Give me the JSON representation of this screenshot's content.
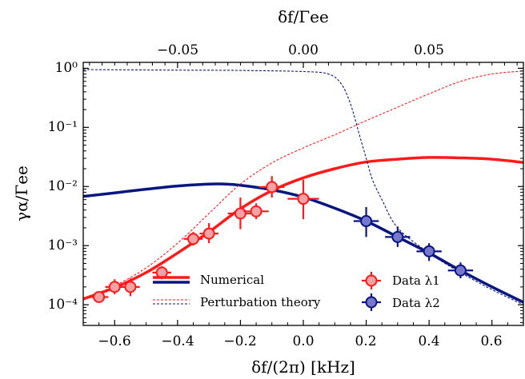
{
  "chart_data": {
    "type": "line",
    "xlabel": "δf/(2π) [kHz]",
    "x2label": "δf/Γee",
    "ylabel": "γα/Γee",
    "xlim": [
      -0.7,
      0.7
    ],
    "x2lim": [
      -0.0875,
      0.0875
    ],
    "ylim_log10": [
      -4.35,
      0.1
    ],
    "yscale": "log",
    "x_ticks": [
      "−0.6",
      "−0.4",
      "−0.2",
      "0.0",
      "0.2",
      "0.4",
      "0.6"
    ],
    "x2_ticks": [
      "−0.05",
      "0.00",
      "0.05"
    ],
    "y_ticks": [
      "10⁰",
      "10⁻¹",
      "10⁻²",
      "10⁻³",
      "10⁻⁴"
    ],
    "legend_position": "bottom",
    "colors": {
      "red": "#ff1a1a",
      "blue": "#0a1680",
      "marker_red": "#f4a3a3",
      "marker_blue": "#7777cc"
    },
    "legend": {
      "numerical": "Numerical",
      "perturbation": "Perturbation theory",
      "data1": "Data λ1",
      "data2": "Data λ2"
    },
    "series": [
      {
        "name": "Numerical",
        "component": "λ1",
        "x": [
          -0.7,
          -0.6,
          -0.5,
          -0.4,
          -0.3,
          -0.2,
          -0.1,
          0.0,
          0.1,
          0.2,
          0.3,
          0.4,
          0.5,
          0.6,
          0.7
        ],
        "y": [
          0.000125,
          0.000195,
          0.00035,
          0.00075,
          0.0017,
          0.0042,
          0.0085,
          0.014,
          0.02,
          0.026,
          0.029,
          0.031,
          0.0305,
          0.029,
          0.0255
        ]
      },
      {
        "name": "Numerical",
        "component": "λ2",
        "x": [
          -0.7,
          -0.6,
          -0.5,
          -0.4,
          -0.3,
          -0.25,
          -0.2,
          -0.1,
          0.0,
          0.1,
          0.2,
          0.3,
          0.4,
          0.5,
          0.6,
          0.7
        ],
        "y": [
          0.0068,
          0.0078,
          0.009,
          0.0102,
          0.011,
          0.011,
          0.0105,
          0.0088,
          0.0066,
          0.0043,
          0.0026,
          0.0014,
          0.00075,
          0.00038,
          0.0002,
          0.00011
        ]
      },
      {
        "name": "Perturbation theory",
        "component": "λ1",
        "x": [
          -0.7,
          -0.6,
          -0.5,
          -0.4,
          -0.3,
          -0.2,
          -0.1,
          0.0,
          0.1,
          0.2,
          0.3,
          0.4,
          0.5,
          0.6,
          0.7
        ],
        "y": [
          0.000125,
          0.00021,
          0.00042,
          0.0011,
          0.0035,
          0.011,
          0.025,
          0.045,
          0.075,
          0.13,
          0.22,
          0.37,
          0.6,
          0.8,
          0.9
        ]
      },
      {
        "name": "Perturbation theory",
        "component": "λ2",
        "x": [
          -0.7,
          -0.4,
          -0.2,
          0.0,
          0.08,
          0.12,
          0.15,
          0.18,
          0.2,
          0.22,
          0.25,
          0.3,
          0.4,
          0.5,
          0.6,
          0.7
        ],
        "y": [
          0.95,
          0.93,
          0.92,
          0.88,
          0.8,
          0.55,
          0.25,
          0.07,
          0.03,
          0.013,
          0.006,
          0.002,
          0.00075,
          0.00035,
          0.00018,
          0.0001
        ]
      }
    ],
    "data_points": [
      {
        "name": "Data λ1",
        "points": [
          {
            "x": -0.65,
            "y": 0.000135,
            "xerr": 0.03,
            "ylo": 0.00011,
            "yhi": 0.00016
          },
          {
            "x": -0.6,
            "y": 0.0002,
            "xerr": 0.03,
            "ylo": 0.00015,
            "yhi": 0.00027
          },
          {
            "x": -0.55,
            "y": 0.0002,
            "xerr": 0.03,
            "ylo": 0.00014,
            "yhi": 0.00028
          },
          {
            "x": -0.45,
            "y": 0.00035,
            "xerr": 0.03,
            "ylo": 0.00027,
            "yhi": 0.00045
          },
          {
            "x": -0.35,
            "y": 0.0013,
            "xerr": 0.03,
            "ylo": 0.001,
            "yhi": 0.0017
          },
          {
            "x": -0.3,
            "y": 0.0016,
            "xerr": 0.03,
            "ylo": 0.0011,
            "yhi": 0.0024
          },
          {
            "x": -0.2,
            "y": 0.0035,
            "xerr": 0.04,
            "ylo": 0.0019,
            "yhi": 0.0065
          },
          {
            "x": -0.15,
            "y": 0.0038,
            "xerr": 0.04,
            "ylo": 0.0028,
            "yhi": 0.0052
          },
          {
            "x": -0.1,
            "y": 0.0098,
            "xerr": 0.04,
            "ylo": 0.0065,
            "yhi": 0.015
          },
          {
            "x": 0.0,
            "y": 0.0062,
            "xerr": 0.05,
            "ylo": 0.0028,
            "yhi": 0.013
          }
        ]
      },
      {
        "name": "Data λ2",
        "points": [
          {
            "x": 0.2,
            "y": 0.0026,
            "xerr": 0.04,
            "ylo": 0.0014,
            "yhi": 0.0045
          },
          {
            "x": 0.3,
            "y": 0.0014,
            "xerr": 0.04,
            "ylo": 0.00095,
            "yhi": 0.0021
          },
          {
            "x": 0.4,
            "y": 0.0008,
            "xerr": 0.04,
            "ylo": 0.00055,
            "yhi": 0.0011
          },
          {
            "x": 0.5,
            "y": 0.00038,
            "xerr": 0.04,
            "ylo": 0.00028,
            "yhi": 0.00052
          }
        ]
      }
    ]
  }
}
